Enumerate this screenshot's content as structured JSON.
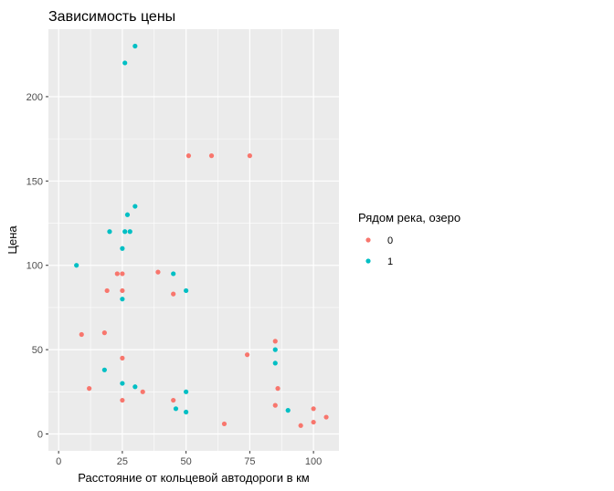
{
  "chart_data": {
    "type": "scatter",
    "title": "Зависимость цены",
    "xlabel": "Расстояние от кольцевой автодороги в км",
    "ylabel": "Цена",
    "xlim": [
      -4,
      110
    ],
    "ylim": [
      -10,
      240
    ],
    "x_ticks": [
      0,
      25,
      50,
      75,
      100
    ],
    "y_ticks": [
      0,
      50,
      100,
      150,
      200
    ],
    "x_tick_labels": [
      "0",
      "25",
      "50",
      "75",
      "100"
    ],
    "y_tick_labels": [
      "0",
      "50",
      "100",
      "150",
      "200"
    ],
    "grid": true,
    "legend": {
      "title": "Рядом река, озеро",
      "placement": "right",
      "entries": [
        "0",
        "1"
      ]
    },
    "colors": {
      "0": "#F8766D",
      "1": "#00BFC4",
      "panel": "#EBEBEB",
      "grid": "#FFFFFF"
    },
    "series": [
      {
        "name": "0",
        "points": [
          [
            51,
            165
          ],
          [
            60,
            165
          ],
          [
            75,
            165
          ],
          [
            23,
            95
          ],
          [
            25,
            95
          ],
          [
            39,
            96
          ],
          [
            19,
            85
          ],
          [
            25,
            85
          ],
          [
            45,
            83
          ],
          [
            9,
            59
          ],
          [
            18,
            60
          ],
          [
            85,
            55
          ],
          [
            74,
            47
          ],
          [
            25,
            45
          ],
          [
            12,
            27
          ],
          [
            33,
            25
          ],
          [
            86,
            27
          ],
          [
            25,
            20
          ],
          [
            45,
            20
          ],
          [
            85,
            17
          ],
          [
            100,
            15
          ],
          [
            105,
            10
          ],
          [
            100,
            7
          ],
          [
            65,
            6
          ],
          [
            95,
            5
          ]
        ]
      },
      {
        "name": "1",
        "points": [
          [
            30,
            230
          ],
          [
            26,
            220
          ],
          [
            30,
            135
          ],
          [
            27,
            130
          ],
          [
            20,
            120
          ],
          [
            26,
            120
          ],
          [
            28,
            120
          ],
          [
            25,
            110
          ],
          [
            7,
            100
          ],
          [
            45,
            95
          ],
          [
            50,
            85
          ],
          [
            25,
            80
          ],
          [
            85,
            50
          ],
          [
            85,
            42
          ],
          [
            18,
            38
          ],
          [
            25,
            30
          ],
          [
            30,
            28
          ],
          [
            50,
            25
          ],
          [
            46,
            15
          ],
          [
            50,
            13
          ],
          [
            90,
            14
          ]
        ]
      }
    ]
  }
}
